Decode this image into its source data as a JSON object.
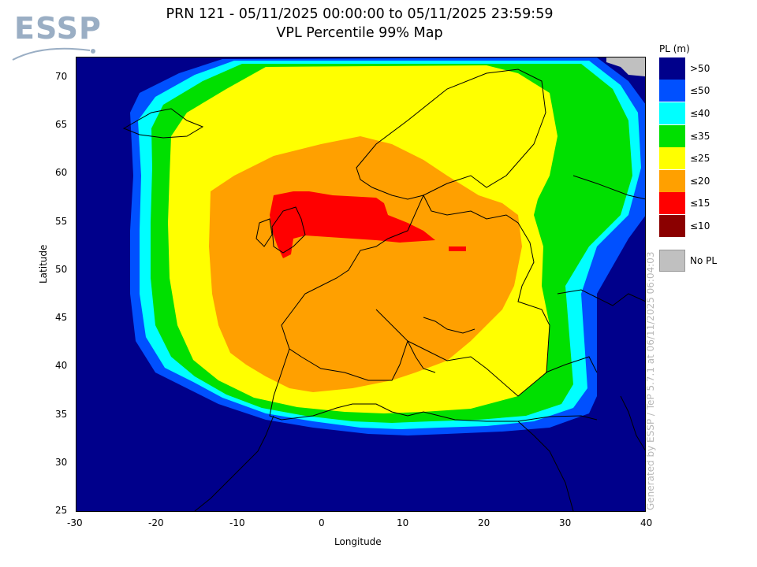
{
  "logo": {
    "text": "ESSP"
  },
  "title": {
    "line1": "PRN 121 - 05/11/2025 00:00:00 to 05/11/2025 23:59:59",
    "line2": "VPL Percentile 99% Map"
  },
  "axes": {
    "xlabel": "Longitude",
    "ylabel": "Latitude",
    "x_ticks": [
      "-30",
      "-20",
      "-10",
      "0",
      "10",
      "20",
      "30",
      "40"
    ],
    "y_ticks": [
      "70",
      "65",
      "60",
      "55",
      "50",
      "45",
      "40",
      "35",
      "30",
      "25"
    ]
  },
  "legend": {
    "title": "PL (m)",
    "items": [
      {
        "label": ">50",
        "color": "#00008b"
      },
      {
        "label": "≤50",
        "color": "#0050ff"
      },
      {
        "label": "≤40",
        "color": "#00ffff"
      },
      {
        "label": "≤35",
        "color": "#00e000"
      },
      {
        "label": "≤25",
        "color": "#ffff00"
      },
      {
        "label": "≤20",
        "color": "#ffa000"
      },
      {
        "label": "≤15",
        "color": "#ff0000"
      },
      {
        "label": "≤10",
        "color": "#8b0000"
      }
    ],
    "nopl": {
      "label": "No PL",
      "color": "#c0c0c0"
    }
  },
  "credit": "Generated by ESSP / TeP 5.7.1 at 06/11/2025 06:04:03",
  "map_data": {
    "x_range": [
      -30,
      40
    ],
    "y_range": [
      25,
      72
    ],
    "description_values": {
      "satellite": "PRN 121",
      "metric": "VPL 99th percentile"
    }
  }
}
